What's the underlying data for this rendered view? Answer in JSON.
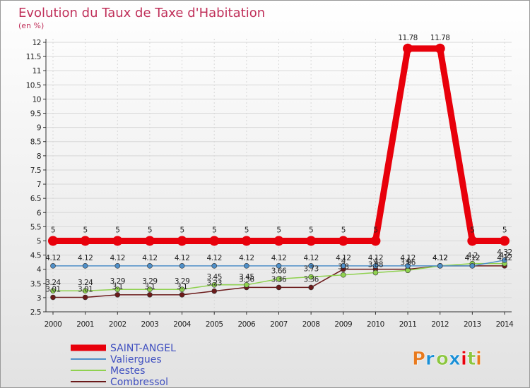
{
  "chart_data": {
    "type": "line",
    "title": "Evolution du Taux de Taxe d'Habitation",
    "subtitle": "(en %)",
    "categories": [
      "2000",
      "2001",
      "2002",
      "2003",
      "2004",
      "2005",
      "2006",
      "2007",
      "2008",
      "2009",
      "2010",
      "2011",
      "2012",
      "2013",
      "2014"
    ],
    "ylim": [
      2.5,
      12
    ],
    "yticks": [
      "2.5",
      "3",
      "3.5",
      "4",
      "4.5",
      "5",
      "5.5",
      "6",
      "6.5",
      "7",
      "7.5",
      "8",
      "8.5",
      "9",
      "9.5",
      "10",
      "10.5",
      "11",
      "11.5",
      "12"
    ],
    "series": [
      {
        "name": "SAINT-ANGEL",
        "color": "#e8000b",
        "values": [
          5,
          5,
          5,
          5,
          5,
          5,
          5,
          5,
          5,
          5,
          5,
          11.78,
          11.78,
          5,
          5
        ],
        "labels": [
          "5",
          "5",
          "5",
          "5",
          "5",
          "5",
          "5",
          "5",
          "5",
          "5",
          "5",
          "11.78",
          "11.78",
          "5",
          "5"
        ]
      },
      {
        "name": "Valiergues",
        "color": "#4f8fc8",
        "values": [
          4.12,
          4.12,
          4.12,
          4.12,
          4.12,
          4.12,
          4.12,
          4.12,
          4.12,
          4.12,
          4.12,
          4.12,
          4.12,
          4.12,
          4.32
        ],
        "labels": [
          "4.12",
          "4.12",
          "4.12",
          "4.12",
          "4.12",
          "4.12",
          "4.12",
          "4.12",
          "4.12",
          "4.12",
          "4.12",
          "4.12",
          "4.12",
          "4.12",
          "4.32"
        ]
      },
      {
        "name": "Mestes",
        "color": "#8fd14f",
        "values": [
          3.24,
          3.24,
          3.29,
          3.29,
          3.29,
          3.45,
          3.45,
          3.66,
          3.73,
          3.8,
          3.88,
          3.96,
          4.12,
          4.2,
          4.2
        ],
        "labels": [
          "3.24",
          "3.24",
          "3.29",
          "3.29",
          "3.29",
          "3.45",
          "3.45",
          "3.66",
          "3.73",
          "3.8",
          "3.88",
          "3.96",
          "4.12",
          "4.2",
          "4.2"
        ]
      },
      {
        "name": "Combressol",
        "color": "#6b1a1a",
        "values": [
          3.01,
          3.01,
          3.1,
          3.1,
          3.1,
          3.23,
          3.36,
          3.36,
          3.36,
          4,
          4,
          4,
          4.12,
          4.12,
          4.12
        ],
        "labels": [
          "3.01",
          "3.01",
          "3.1",
          "3.1",
          "3.1",
          "3.23",
          "3.36",
          "3.36",
          "3.36",
          "4",
          "4",
          "4",
          "4.12",
          "4.12",
          "4.12"
        ]
      }
    ]
  },
  "logo": {
    "text": "Proxiti",
    "colors": [
      "#e87a1e",
      "#1a8fd6",
      "#8cc63f",
      "#1a8fd6",
      "#e8000b",
      "#8cc63f",
      "#e87a1e"
    ]
  }
}
